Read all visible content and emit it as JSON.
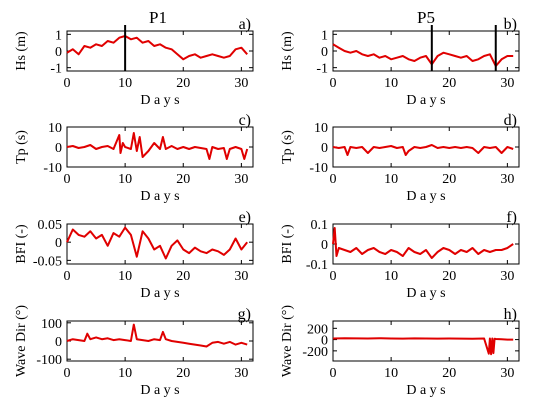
{
  "columns": [
    {
      "title": "P1"
    },
    {
      "title": "P5"
    }
  ],
  "colors": {
    "series": "#e00000",
    "event_line": "#000000",
    "axes": "#000000"
  },
  "chart_data": [
    {
      "panel": "a)",
      "column": "P1",
      "type": "line",
      "ylabel": "Hs (m)",
      "xlabel": "D a y s",
      "xlim": [
        0,
        32
      ],
      "ylim": [
        -1.2,
        1.2
      ],
      "xticks": [
        0,
        10,
        20,
        30
      ],
      "yticks": [
        -1,
        0,
        1
      ],
      "event_lines": [
        10
      ],
      "series": [
        {
          "x": [
            0,
            1,
            2,
            3,
            4,
            5,
            6,
            7,
            8,
            9,
            10,
            11,
            12,
            13,
            14,
            15,
            16,
            17,
            18,
            19,
            20,
            21,
            22,
            23,
            24,
            25,
            26,
            27,
            28,
            29,
            30,
            31
          ],
          "values": [
            -0.1,
            0.1,
            -0.2,
            0.3,
            0.2,
            0.4,
            0.3,
            0.6,
            0.5,
            0.8,
            0.9,
            0.7,
            0.8,
            0.5,
            0.6,
            0.3,
            0.4,
            0.2,
            0.1,
            -0.2,
            -0.5,
            -0.3,
            -0.2,
            -0.4,
            -0.3,
            -0.2,
            -0.3,
            -0.4,
            -0.3,
            0.1,
            0.2,
            -0.2
          ]
        }
      ]
    },
    {
      "panel": "b)",
      "column": "P5",
      "type": "line",
      "ylabel": "Hs (m)",
      "xlabel": "D a y s",
      "xlim": [
        0,
        32
      ],
      "ylim": [
        -1.2,
        1.2
      ],
      "xticks": [
        0,
        10,
        20,
        30
      ],
      "yticks": [
        -1,
        0,
        1
      ],
      "event_lines": [
        17,
        28
      ],
      "series": [
        {
          "x": [
            0,
            1,
            2,
            3,
            4,
            5,
            6,
            7,
            8,
            9,
            10,
            11,
            12,
            13,
            14,
            15,
            16,
            17,
            18,
            19,
            20,
            21,
            22,
            23,
            24,
            25,
            26,
            27,
            28,
            29,
            30,
            31
          ],
          "values": [
            0.4,
            0.2,
            0.0,
            -0.1,
            0.0,
            -0.2,
            -0.3,
            -0.2,
            -0.4,
            -0.3,
            -0.5,
            -0.4,
            -0.3,
            -0.5,
            -0.6,
            -0.4,
            -0.3,
            -0.8,
            -0.3,
            -0.1,
            -0.2,
            -0.3,
            -0.4,
            -0.3,
            -0.6,
            -0.5,
            -0.3,
            -0.2,
            -0.9,
            -0.5,
            -0.3,
            -0.3
          ]
        }
      ]
    },
    {
      "panel": "c)",
      "column": "P1",
      "type": "line",
      "ylabel": "Tp (s)",
      "xlabel": "D a y s",
      "xlim": [
        0,
        32
      ],
      "ylim": [
        -10,
        10
      ],
      "xticks": [
        0,
        10,
        20,
        30
      ],
      "yticks": [
        -10,
        0,
        10
      ],
      "event_lines": [],
      "series": [
        {
          "x": [
            0,
            1,
            2,
            3,
            4,
            5,
            6,
            7,
            8,
            9,
            9.2,
            9.6,
            10,
            11,
            11.5,
            12,
            12.5,
            13,
            14,
            15,
            16,
            16.5,
            17,
            18,
            19,
            20,
            21,
            22,
            23,
            24,
            24.5,
            25,
            26,
            27,
            27.5,
            28,
            29,
            30,
            30.5,
            31
          ],
          "values": [
            0,
            0.5,
            -0.5,
            0,
            1,
            -1,
            0,
            0.5,
            -1,
            6,
            -3,
            2,
            0,
            -1,
            7,
            -2,
            5,
            -5,
            -2,
            2,
            -1,
            5,
            -1,
            0.5,
            -1,
            0,
            -1,
            0,
            -0.5,
            -1,
            -6,
            0,
            -1,
            -0.5,
            -6,
            -1,
            0,
            -1,
            -6,
            -1
          ]
        }
      ]
    },
    {
      "panel": "d)",
      "column": "P5",
      "type": "line",
      "ylabel": "Tp (s)",
      "xlabel": "D a y s",
      "xlim": [
        0,
        32
      ],
      "ylim": [
        -10,
        10
      ],
      "xticks": [
        0,
        10,
        20,
        30
      ],
      "yticks": [
        -10,
        0,
        10
      ],
      "event_lines": [],
      "series": [
        {
          "x": [
            0,
            1,
            2,
            2.5,
            3,
            4,
            5,
            6,
            7,
            8,
            9,
            10,
            11,
            12,
            12.5,
            13,
            14,
            15,
            16,
            17,
            18,
            19,
            20,
            21,
            22,
            23,
            24,
            25,
            26,
            27,
            28,
            29,
            30,
            31
          ],
          "values": [
            0,
            -0.5,
            0,
            -4,
            0,
            -0.5,
            0,
            -3,
            0,
            -0.5,
            0,
            0.5,
            -0.5,
            0,
            -4,
            -2,
            0,
            -0.5,
            0,
            1,
            -0.5,
            0,
            -0.5,
            0,
            -0.5,
            0,
            -0.5,
            -3,
            0,
            -0.5,
            0,
            -3,
            0,
            -1
          ]
        }
      ]
    },
    {
      "panel": "e)",
      "column": "P1",
      "type": "line",
      "ylabel": "BFI (-)",
      "xlabel": "D a y s",
      "xlim": [
        0,
        32
      ],
      "ylim": [
        -0.06,
        0.05
      ],
      "xticks": [
        0,
        10,
        20,
        30
      ],
      "yticks": [
        -0.05,
        0,
        0.05
      ],
      "event_lines": [],
      "series": [
        {
          "x": [
            0,
            1,
            2,
            3,
            4,
            5,
            6,
            7,
            8,
            9,
            10,
            11,
            12,
            13,
            14,
            15,
            16,
            17,
            18,
            19,
            20,
            21,
            22,
            23,
            24,
            25,
            26,
            27,
            28,
            29,
            30,
            31
          ],
          "values": [
            0.0,
            0.035,
            0.02,
            0.015,
            0.03,
            0.01,
            0.02,
            -0.01,
            0.025,
            0.015,
            0.04,
            0.02,
            -0.04,
            0.03,
            0.01,
            -0.02,
            -0.01,
            -0.045,
            -0.01,
            0.005,
            -0.02,
            -0.03,
            -0.015,
            -0.025,
            -0.03,
            -0.02,
            -0.025,
            -0.035,
            -0.02,
            0.01,
            -0.02,
            0.0
          ]
        }
      ]
    },
    {
      "panel": "f)",
      "column": "P5",
      "type": "line",
      "ylabel": "BFI (-)",
      "xlabel": "D a y s",
      "xlim": [
        0,
        32
      ],
      "ylim": [
        -0.1,
        0.1
      ],
      "xticks": [
        0,
        10,
        20,
        30
      ],
      "yticks": [
        -0.1,
        0,
        0.1
      ],
      "event_lines": [],
      "series": [
        {
          "x": [
            0,
            0.3,
            0.6,
            1,
            2,
            3,
            4,
            5,
            6,
            7,
            8,
            9,
            10,
            11,
            12,
            13,
            14,
            15,
            16,
            17,
            18,
            19,
            20,
            21,
            22,
            23,
            24,
            25,
            26,
            27,
            28,
            29,
            30,
            31
          ],
          "values": [
            0.0,
            0.08,
            -0.06,
            -0.02,
            -0.03,
            -0.04,
            -0.02,
            -0.05,
            -0.03,
            -0.02,
            -0.04,
            -0.05,
            -0.03,
            -0.04,
            -0.06,
            -0.02,
            -0.04,
            -0.05,
            -0.03,
            -0.07,
            -0.04,
            -0.02,
            -0.03,
            -0.05,
            -0.03,
            -0.04,
            -0.02,
            -0.05,
            -0.03,
            -0.04,
            -0.03,
            -0.03,
            -0.02,
            0.0
          ]
        }
      ]
    },
    {
      "panel": "g)",
      "column": "P1",
      "type": "line",
      "ylabel": "Wave Dir (°)",
      "xlabel": "D a y s",
      "xlim": [
        0,
        32
      ],
      "ylim": [
        -110,
        110
      ],
      "xticks": [
        0,
        10,
        20,
        30
      ],
      "yticks": [
        -100,
        0,
        100
      ],
      "event_lines": [],
      "series": [
        {
          "x": [
            0,
            1,
            2,
            3,
            3.5,
            4,
            5,
            6,
            7,
            8,
            9,
            10,
            11,
            11.5,
            12,
            13,
            14,
            15,
            16,
            16.5,
            17,
            18,
            19,
            20,
            21,
            22,
            23,
            24,
            25,
            26,
            27,
            28,
            29,
            30,
            31
          ],
          "values": [
            0,
            10,
            5,
            0,
            40,
            10,
            20,
            10,
            15,
            5,
            10,
            5,
            0,
            90,
            10,
            5,
            0,
            10,
            5,
            50,
            10,
            0,
            -5,
            -10,
            -15,
            -20,
            -25,
            -30,
            -10,
            -5,
            -15,
            -5,
            -20,
            -10,
            -20
          ]
        }
      ]
    },
    {
      "panel": "h)",
      "column": "P5",
      "type": "line",
      "ylabel": "Wave Dir (°)",
      "xlabel": "D a y s",
      "xlim": [
        0,
        32
      ],
      "ylim": [
        -380,
        330
      ],
      "xticks": [
        0,
        10,
        20,
        30
      ],
      "yticks": [
        -200,
        0,
        200
      ],
      "event_lines": [],
      "series": [
        {
          "x": [
            0,
            2,
            4,
            6,
            8,
            10,
            12,
            14,
            16,
            18,
            20,
            22,
            24,
            26,
            26.8,
            27,
            27.2,
            27.4,
            27.6,
            27.8,
            28,
            29,
            30,
            31
          ],
          "values": [
            20,
            25,
            22,
            20,
            25,
            20,
            18,
            22,
            20,
            18,
            20,
            18,
            15,
            20,
            -250,
            20,
            -260,
            20,
            -240,
            15,
            10,
            5,
            0,
            0
          ]
        }
      ]
    }
  ]
}
